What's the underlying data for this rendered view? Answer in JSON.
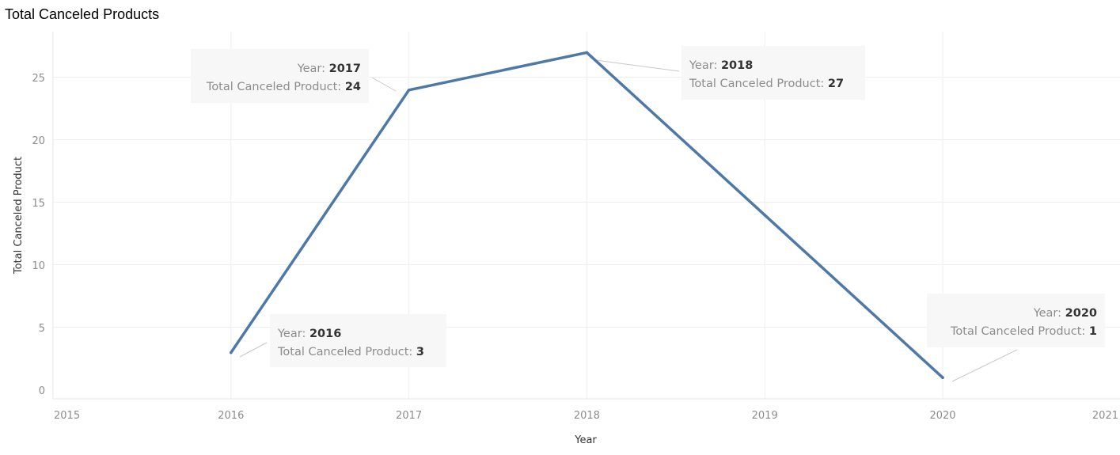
{
  "chart_data": {
    "type": "line",
    "title": "Total Canceled Products",
    "xlabel": "Year",
    "ylabel": "Total Canceled Product",
    "x_ticks": [
      "2015",
      "2016",
      "2017",
      "2018",
      "2019",
      "2020",
      "2021"
    ],
    "y_ticks": [
      "0",
      "5",
      "10",
      "15",
      "20",
      "25"
    ],
    "xlim": [
      2015,
      2021
    ],
    "ylim": [
      0,
      28
    ],
    "grid": true,
    "series": [
      {
        "x": [
          2016,
          2017,
          2018,
          2019,
          2020
        ],
        "y": [
          3,
          24,
          27,
          14,
          1
        ]
      }
    ],
    "annotations": [
      {
        "year": "2016",
        "value": "3",
        "year_label": "Year:",
        "value_label": "Total Canceled Product:"
      },
      {
        "year": "2017",
        "value": "24",
        "year_label": "Year:",
        "value_label": "Total Canceled Product:"
      },
      {
        "year": "2018",
        "value": "27",
        "year_label": "Year:",
        "value_label": "Total Canceled Product:"
      },
      {
        "year": "2020",
        "value": "1",
        "year_label": "Year:",
        "value_label": "Total Canceled Product:"
      }
    ],
    "colors": {
      "line": "#4e79a7",
      "grid": "#eeeeee",
      "annotation_bg": "#f7f7f7",
      "annotation_leader": "#c8c8c8"
    }
  }
}
